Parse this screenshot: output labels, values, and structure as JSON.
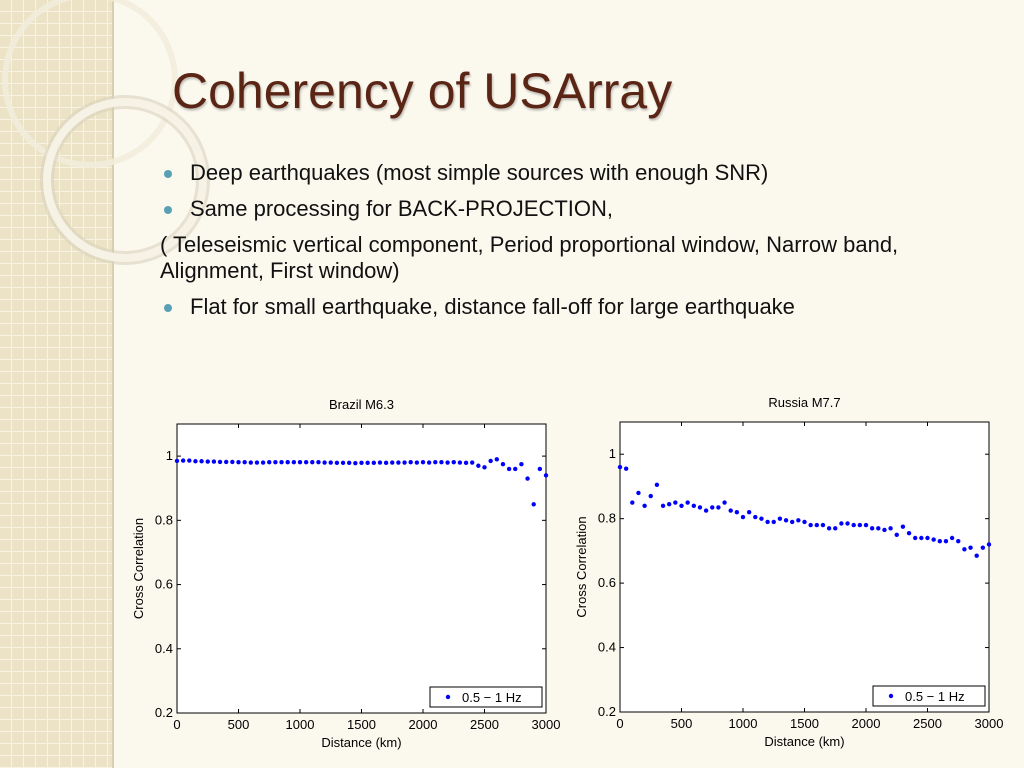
{
  "title": "Coherency of USArray",
  "body": [
    "Deep earthquakes (most simple sources with enough SNR)",
    "Same processing for BACK-PROJECTION,",
    "( Teleseismic vertical component, Period proportional window, Narrow band, Alignment, First window)",
    "Flat for small earthquake, distance fall-off for large earthquake"
  ],
  "chart_data": [
    {
      "type": "scatter",
      "title": "Brazil M6.3",
      "xlabel": "Distance (km)",
      "ylabel": "Cross Correlation",
      "x": [
        0,
        50,
        100,
        150,
        200,
        250,
        300,
        350,
        400,
        450,
        500,
        550,
        600,
        650,
        700,
        750,
        800,
        850,
        900,
        950,
        1000,
        1050,
        1100,
        1150,
        1200,
        1250,
        1300,
        1350,
        1400,
        1450,
        1500,
        1550,
        1600,
        1650,
        1700,
        1750,
        1800,
        1850,
        1900,
        1950,
        2000,
        2050,
        2100,
        2150,
        2200,
        2250,
        2300,
        2350,
        2400,
        2450,
        2500,
        2550,
        2600,
        2650,
        2700,
        2750,
        2800,
        2850,
        2900,
        2950,
        3000
      ],
      "series": [
        {
          "name": "0.5 − 1 Hz",
          "color": "#0000ff",
          "values": [
            0.985,
            0.986,
            0.986,
            0.984,
            0.984,
            0.983,
            0.983,
            0.982,
            0.982,
            0.982,
            0.981,
            0.981,
            0.98,
            0.98,
            0.98,
            0.981,
            0.981,
            0.981,
            0.981,
            0.981,
            0.981,
            0.981,
            0.981,
            0.981,
            0.98,
            0.98,
            0.979,
            0.979,
            0.979,
            0.978,
            0.979,
            0.979,
            0.979,
            0.98,
            0.979,
            0.98,
            0.98,
            0.98,
            0.981,
            0.98,
            0.981,
            0.98,
            0.981,
            0.981,
            0.98,
            0.981,
            0.98,
            0.979,
            0.98,
            0.97,
            0.965,
            0.985,
            0.99,
            0.975,
            0.96,
            0.96,
            0.975,
            0.93,
            0.85,
            0.96,
            0.94
          ]
        }
      ],
      "xlim": [
        0,
        3000
      ],
      "ylim": [
        0.2,
        1.1
      ],
      "xticks": [
        0,
        500,
        1000,
        1500,
        2000,
        2500,
        3000
      ],
      "yticks": [
        0.2,
        0.4,
        0.6,
        0.8,
        1
      ],
      "legend": "lower right"
    },
    {
      "type": "scatter",
      "title": "Russia M7.7",
      "xlabel": "Distance (km)",
      "ylabel": "Cross Correlation",
      "x": [
        0,
        50,
        100,
        150,
        200,
        250,
        300,
        350,
        400,
        450,
        500,
        550,
        600,
        650,
        700,
        750,
        800,
        850,
        900,
        950,
        1000,
        1050,
        1100,
        1150,
        1200,
        1250,
        1300,
        1350,
        1400,
        1450,
        1500,
        1550,
        1600,
        1650,
        1700,
        1750,
        1800,
        1850,
        1900,
        1950,
        2000,
        2050,
        2100,
        2150,
        2200,
        2250,
        2300,
        2350,
        2400,
        2450,
        2500,
        2550,
        2600,
        2650,
        2700,
        2750,
        2800,
        2850,
        2900,
        2950,
        3000
      ],
      "series": [
        {
          "name": "0.5 − 1 Hz",
          "color": "#0000ff",
          "values": [
            0.96,
            0.955,
            0.85,
            0.88,
            0.84,
            0.87,
            0.905,
            0.84,
            0.845,
            0.85,
            0.84,
            0.85,
            0.84,
            0.835,
            0.825,
            0.835,
            0.835,
            0.85,
            0.825,
            0.82,
            0.805,
            0.82,
            0.805,
            0.8,
            0.79,
            0.79,
            0.8,
            0.795,
            0.79,
            0.795,
            0.79,
            0.78,
            0.78,
            0.78,
            0.77,
            0.77,
            0.785,
            0.785,
            0.78,
            0.78,
            0.78,
            0.77,
            0.77,
            0.765,
            0.77,
            0.75,
            0.775,
            0.755,
            0.74,
            0.74,
            0.74,
            0.735,
            0.73,
            0.73,
            0.74,
            0.73,
            0.705,
            0.71,
            0.685,
            0.71,
            0.72
          ]
        }
      ],
      "xlim": [
        0,
        3000
      ],
      "ylim": [
        0.2,
        1.1
      ],
      "xticks": [
        0,
        500,
        1000,
        1500,
        2000,
        2500,
        3000
      ],
      "yticks": [
        0.2,
        0.4,
        0.6,
        0.8,
        1
      ],
      "legend": "lower right"
    }
  ]
}
